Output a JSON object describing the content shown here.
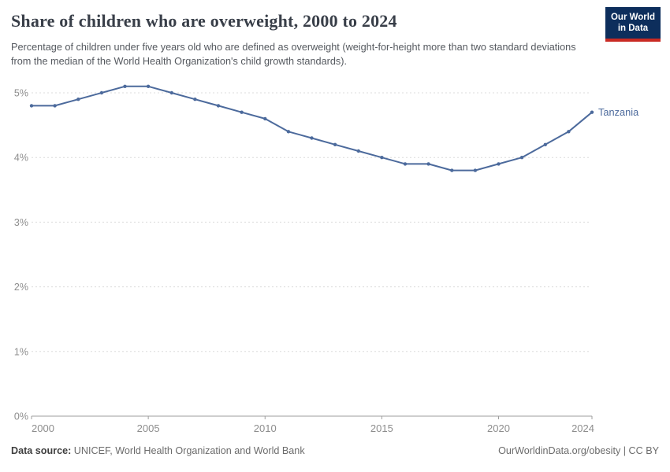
{
  "header": {
    "title": "Share of children who are overweight, 2000 to 2024",
    "subtitle": "Percentage of children under five years old who are defined as overweight (weight-for-height more than two standard deviations from the median of the World Health Organization's child growth standards).",
    "logo": {
      "line1": "Our World",
      "line2": "in Data",
      "bg_color": "#0d2e5c",
      "accent_color": "#c92a23"
    }
  },
  "chart_data": {
    "type": "line",
    "title": "Share of children who are overweight, 2000 to 2024",
    "xlabel": "",
    "ylabel": "",
    "xlim": [
      2000,
      2024
    ],
    "ylim": [
      0,
      5.35
    ],
    "grid": "horizontal-dashed",
    "legend_position": "end-of-line",
    "x_ticks": [
      2000,
      2005,
      2010,
      2015,
      2020,
      2024
    ],
    "y_ticks": [
      {
        "value": 0,
        "label": "0%"
      },
      {
        "value": 1,
        "label": "1%"
      },
      {
        "value": 2,
        "label": "2%"
      },
      {
        "value": 3,
        "label": "3%"
      },
      {
        "value": 4,
        "label": "4%"
      },
      {
        "value": 5,
        "label": "5%"
      }
    ],
    "series": [
      {
        "name": "Tanzania",
        "color": "#4C6A9C",
        "x": [
          2000,
          2001,
          2002,
          2003,
          2004,
          2005,
          2006,
          2007,
          2008,
          2009,
          2010,
          2011,
          2012,
          2013,
          2014,
          2015,
          2016,
          2017,
          2018,
          2019,
          2020,
          2021,
          2022,
          2023,
          2024
        ],
        "values": [
          4.8,
          4.8,
          4.9,
          5.0,
          5.1,
          5.1,
          5.0,
          4.9,
          4.8,
          4.7,
          4.6,
          4.4,
          4.3,
          4.2,
          4.1,
          4.0,
          3.9,
          3.9,
          3.8,
          3.8,
          3.9,
          4.0,
          4.2,
          4.4,
          4.7
        ]
      }
    ],
    "end_label": "Tanzania",
    "colors": {
      "gridline": "#dcdcdc",
      "axis": "#9e9e9e",
      "tick_label": "#8d8d8d"
    }
  },
  "footer": {
    "source_label": "Data source:",
    "source_text": " UNICEF, World Health Organization and World Bank",
    "attribution": "OurWorldinData.org/obesity | CC BY"
  }
}
